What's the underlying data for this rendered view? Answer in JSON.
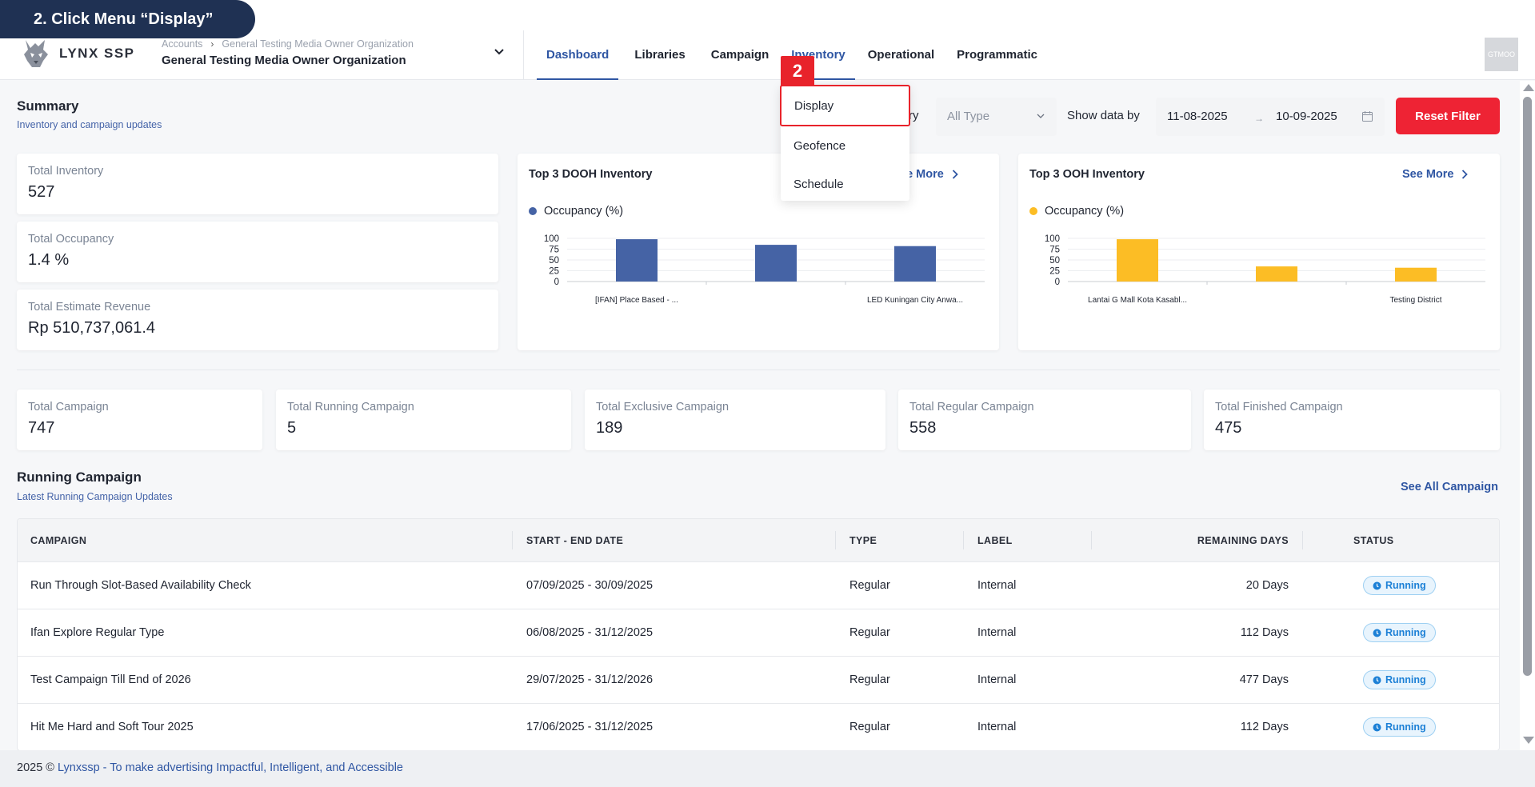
{
  "tutorial": {
    "instruction": "2. Click Menu “Display”",
    "step": "2"
  },
  "brand": {
    "name": "LYNX SSP"
  },
  "breadcrumb": {
    "root": "Accounts",
    "current": "General Testing Media Owner Organization"
  },
  "org": {
    "name": "General Testing Media Owner Organization"
  },
  "nav": {
    "items": [
      {
        "label": "Dashboard"
      },
      {
        "label": "Libraries"
      },
      {
        "label": "Campaign"
      },
      {
        "label": "Inventory"
      },
      {
        "label": "Operational"
      },
      {
        "label": "Programmatic"
      }
    ]
  },
  "avatar": {
    "initials": "GTMOO"
  },
  "dropdown": {
    "items": [
      {
        "label": "Display"
      },
      {
        "label": "Geofence"
      },
      {
        "label": "Schedule"
      }
    ]
  },
  "summary": {
    "title": "Summary",
    "subtitle": "Inventory and campaign updates"
  },
  "filters": {
    "category_label": "ry",
    "type_value": "All Type",
    "show_by_label": "Show data by",
    "date_start": "11-08-2025",
    "date_end": "10-09-2025",
    "reset_label": "Reset Filter"
  },
  "inventory_stats": [
    {
      "label": "Total Inventory",
      "value": "527"
    },
    {
      "label": "Total Occupancy",
      "value": "1.4 %"
    },
    {
      "label": "Total Estimate Revenue",
      "value": "Rp 510,737,061.4"
    }
  ],
  "dooh": {
    "title": "Top 3 DOOH Inventory",
    "see_more": "ee More",
    "legend": "Occupancy (%)",
    "color": "#4563a5"
  },
  "ooh": {
    "title": "Top 3 OOH Inventory",
    "see_more": "See More",
    "legend": "Occupancy (%)",
    "color": "#fcbd25"
  },
  "chart_data": [
    {
      "type": "bar",
      "title": "Top 3 DOOH Inventory",
      "categories": [
        "[IFAN] Place Based - ...",
        "",
        "LED Kuningan City Anwa..."
      ],
      "series": [
        {
          "name": "Occupancy (%)",
          "values": [
            98,
            85,
            82
          ]
        }
      ],
      "yticks": [
        "100",
        "75",
        "50",
        "25",
        "0"
      ],
      "ylim": [
        0,
        100
      ],
      "grid": true
    },
    {
      "type": "bar",
      "title": "Top 3 OOH Inventory",
      "categories": [
        "Lantai G Mall Kota Kasabl...",
        "",
        "Testing District"
      ],
      "series": [
        {
          "name": "Occupancy (%)",
          "values": [
            98,
            35,
            32
          ]
        }
      ],
      "yticks": [
        "100",
        "75",
        "50",
        "25",
        "0"
      ],
      "ylim": [
        0,
        100
      ],
      "grid": true
    }
  ],
  "campaign_stats": [
    {
      "label": "Total Campaign",
      "value": "747"
    },
    {
      "label": "Total Running Campaign",
      "value": "5"
    },
    {
      "label": "Total Exclusive Campaign",
      "value": "189"
    },
    {
      "label": "Total Regular Campaign",
      "value": "558"
    },
    {
      "label": "Total Finished Campaign",
      "value": "475"
    }
  ],
  "running": {
    "title": "Running Campaign",
    "subtitle": "Latest Running Campaign Updates",
    "see_all": "See All Campaign",
    "columns": [
      "CAMPAIGN",
      "START - END DATE",
      "TYPE",
      "LABEL",
      "REMAINING DAYS",
      "STATUS"
    ],
    "rows": [
      {
        "campaign": "Run Through Slot-Based Availability Check",
        "dates": "07/09/2025 - 30/09/2025",
        "type": "Regular",
        "label": "Internal",
        "remaining": "20 Days",
        "status": "Running"
      },
      {
        "campaign": "Ifan Explore Regular Type",
        "dates": "06/08/2025 - 31/12/2025",
        "type": "Regular",
        "label": "Internal",
        "remaining": "112 Days",
        "status": "Running"
      },
      {
        "campaign": "Test Campaign Till End of 2026",
        "dates": "29/07/2025 - 31/12/2026",
        "type": "Regular",
        "label": "Internal",
        "remaining": "477 Days",
        "status": "Running"
      },
      {
        "campaign": "Hit Me Hard and Soft Tour 2025",
        "dates": "17/06/2025 - 31/12/2025",
        "type": "Regular",
        "label": "Internal",
        "remaining": "112 Days",
        "status": "Running"
      }
    ]
  },
  "footer": {
    "prefix": "2025 © ",
    "brand": "Lynxssp",
    "text": " - To make advertising Impactful, Intelligent, and Accessible"
  }
}
